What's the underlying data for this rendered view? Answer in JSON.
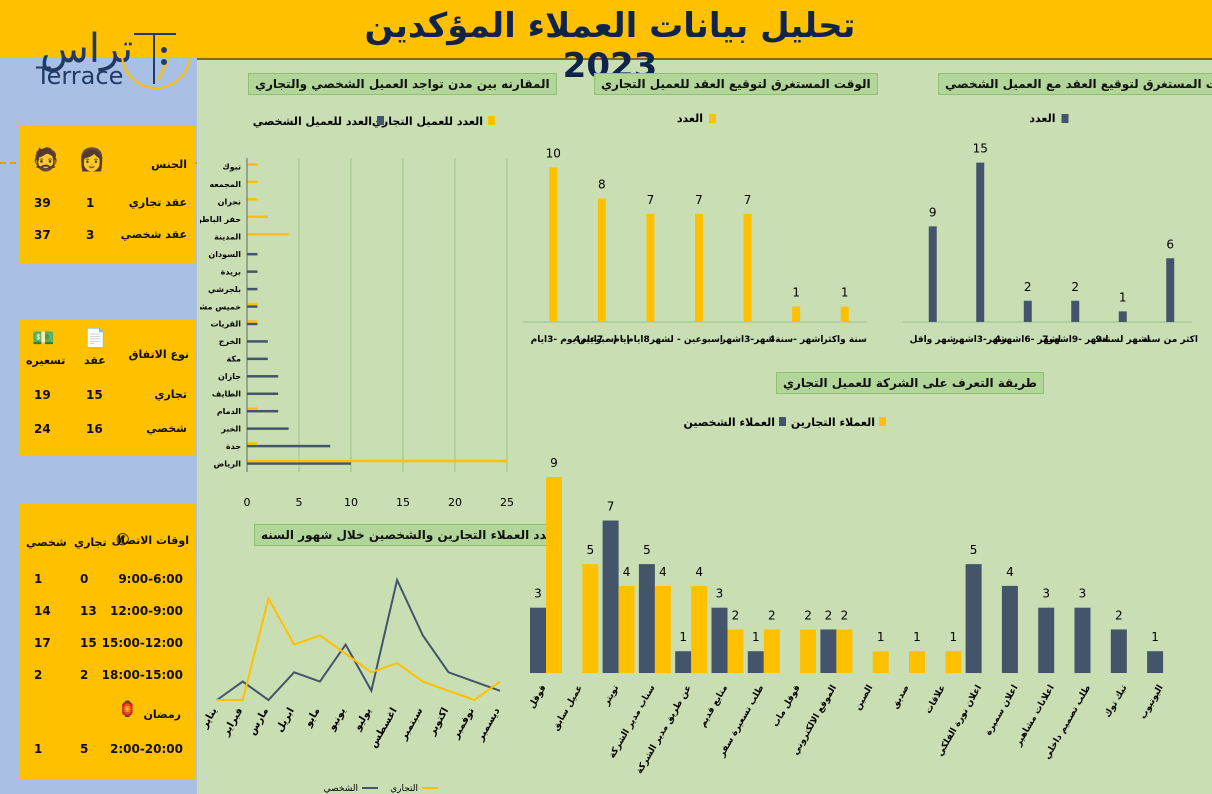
{
  "title": "تحليل بيانات العملاء المؤكدين 2023",
  "logo": {
    "arabic": "تراس",
    "latin": "Terrace"
  },
  "colors": {
    "yellow": "#ffc000",
    "navy": "#44546a",
    "green": "#c9dfb3",
    "blue": "#a9bfe3"
  },
  "gender_card": {
    "header": "الجنس",
    "female_icon": "woman-emoji",
    "male_icon": "man-emoji",
    "rows": [
      {
        "label": "عقد تجاري",
        "female": "1",
        "male": "39"
      },
      {
        "label": "عقد شخصي",
        "female": "3",
        "male": "37"
      }
    ]
  },
  "agreement_card": {
    "header": "نوع الاتفاق",
    "col_contract": "عقد",
    "col_pricing": "تسعيره",
    "rows": [
      {
        "label": "تجاري",
        "contract": "15",
        "pricing": "19"
      },
      {
        "label": "شخصي",
        "contract": "16",
        "pricing": "24"
      }
    ]
  },
  "contact_card": {
    "header": "اوقات الاتصال",
    "col_commercial": "تجاري",
    "col_personal": "شخصي",
    "rows": [
      {
        "time": "9:00-6:00",
        "commercial": "0",
        "personal": "1"
      },
      {
        "time": "12:00-9:00",
        "commercial": "13",
        "personal": "14"
      },
      {
        "time": "15:00-12:00",
        "commercial": "15",
        "personal": "17"
      },
      {
        "time": "18:00-15:00",
        "commercial": "2",
        "personal": "2"
      }
    ],
    "ramadan_label": "رمضان",
    "ramadan": {
      "time": "2:00-20:00",
      "commercial": "5",
      "personal": "1"
    }
  },
  "chart_data": [
    {
      "id": "personal_time",
      "type": "bar",
      "title": "الوقت المستغرق لتوقيع العقد مع العميل الشخصي",
      "series": [
        {
          "name": "العدد",
          "color": "#44546a",
          "values": [
            9,
            15,
            2,
            2,
            1,
            6
          ]
        }
      ],
      "categories": [
        "شهر واقل",
        "شهر-3اشهر",
        "4اشهر -6اشهر",
        "7اشهر -9اشهر",
        "9اشهر لسنة",
        "اكثر من سنة"
      ]
    },
    {
      "id": "commercial_time",
      "type": "bar",
      "title": "الوقت المستغرق لتوقيع العقد للعميل التجاري",
      "series": [
        {
          "name": "العدد",
          "color": "#ffc000",
          "values": [
            10,
            8,
            7,
            7,
            7,
            1,
            1
          ]
        }
      ],
      "categories": [
        "يوم -3ايام",
        "4ايام - 7ايام",
        "اسبوعين - لشهر8ايام - اسبوعين",
        "",
        "شهر-3اشهر",
        "4اشهر -سنة",
        "سنة واكثر"
      ]
    },
    {
      "id": "cities",
      "type": "bar",
      "orientation": "horizontal",
      "title": "المقارنه بين مدن تواجد العميل الشخصي والتجاري",
      "categories": [
        "تبوك",
        "المجمعه",
        "نجران",
        "حفر الباطن",
        "المدينة",
        "السودان",
        "بريدة",
        "بلجرشي",
        "خميس مشيط",
        "القريات",
        "الخرج",
        "مكة",
        "جازان",
        "الطايف",
        "الدمام",
        "الخبر",
        "جدة",
        "الرياض"
      ],
      "series": [
        {
          "name": "العدد للعميل الشخصي",
          "color": "#44546a",
          "values": [
            0,
            0,
            0,
            0,
            0,
            1,
            1,
            1,
            1,
            1,
            2,
            2,
            3,
            3,
            3,
            4,
            8,
            10
          ]
        },
        {
          "name": "العدد للعميل التجاري",
          "color": "#ffc000",
          "values": [
            1,
            1,
            1,
            2,
            4,
            0,
            0,
            0,
            1,
            1,
            0,
            0,
            0,
            0,
            1,
            0,
            1,
            25
          ]
        }
      ],
      "xticks": [
        0,
        5,
        10,
        15,
        20,
        25
      ],
      "xlim": [
        0,
        25
      ]
    },
    {
      "id": "months",
      "type": "line",
      "title": "عدد العملاء التجارين والشخصين خلال شهور السنه",
      "categories": [
        "يناير",
        "فبراير",
        "مارس",
        "ابريل",
        "مايو",
        "يونيو",
        "يوليو",
        "اغسطس",
        "سبتمبر",
        "اكتوبر",
        "نوفمبر",
        "ديسمبر"
      ],
      "series": [
        {
          "name": "الشخصي",
          "color": "#44546a",
          "values": [
            0,
            2,
            0,
            3,
            2,
            6,
            1,
            13,
            7,
            3,
            2,
            1
          ]
        },
        {
          "name": "التجاري",
          "color": "#ffc000",
          "values": [
            0,
            0,
            11,
            6,
            7,
            5,
            3,
            4,
            2,
            1,
            0,
            2
          ]
        }
      ]
    },
    {
      "id": "channels",
      "type": "bar",
      "title": "طريقة التعرف على الشركة للعميل التجاري",
      "categories": [
        "قوقل",
        "عميل سابق",
        "تويتر",
        "سناب مدير الشركة",
        "عن طريق مدير الشركة",
        "متابع قديم",
        "طلب تسعيرة سفر",
        "قوقل ماب",
        "الموقع الالكتروني",
        "الصين",
        "صديق",
        "علاقات",
        "اعلان نورة الفلكي",
        "اعلان سميرة",
        "اعلانات مشاهير",
        "طلب تصميم داخلي",
        "تيك توك",
        "اليوتيوب"
      ],
      "series": [
        {
          "name": "العملاء الشخصين",
          "color": "#44546a",
          "values": [
            3,
            null,
            7,
            5,
            1,
            3,
            1,
            null,
            2,
            null,
            null,
            null,
            5,
            4,
            3,
            3,
            2,
            1
          ]
        },
        {
          "name": "العملاء التجارين",
          "color": "#ffc000",
          "values": [
            9,
            5,
            4,
            4,
            4,
            2,
            2,
            2,
            2,
            1,
            1,
            1,
            null,
            null,
            null,
            null,
            null,
            null
          ]
        }
      ]
    }
  ]
}
